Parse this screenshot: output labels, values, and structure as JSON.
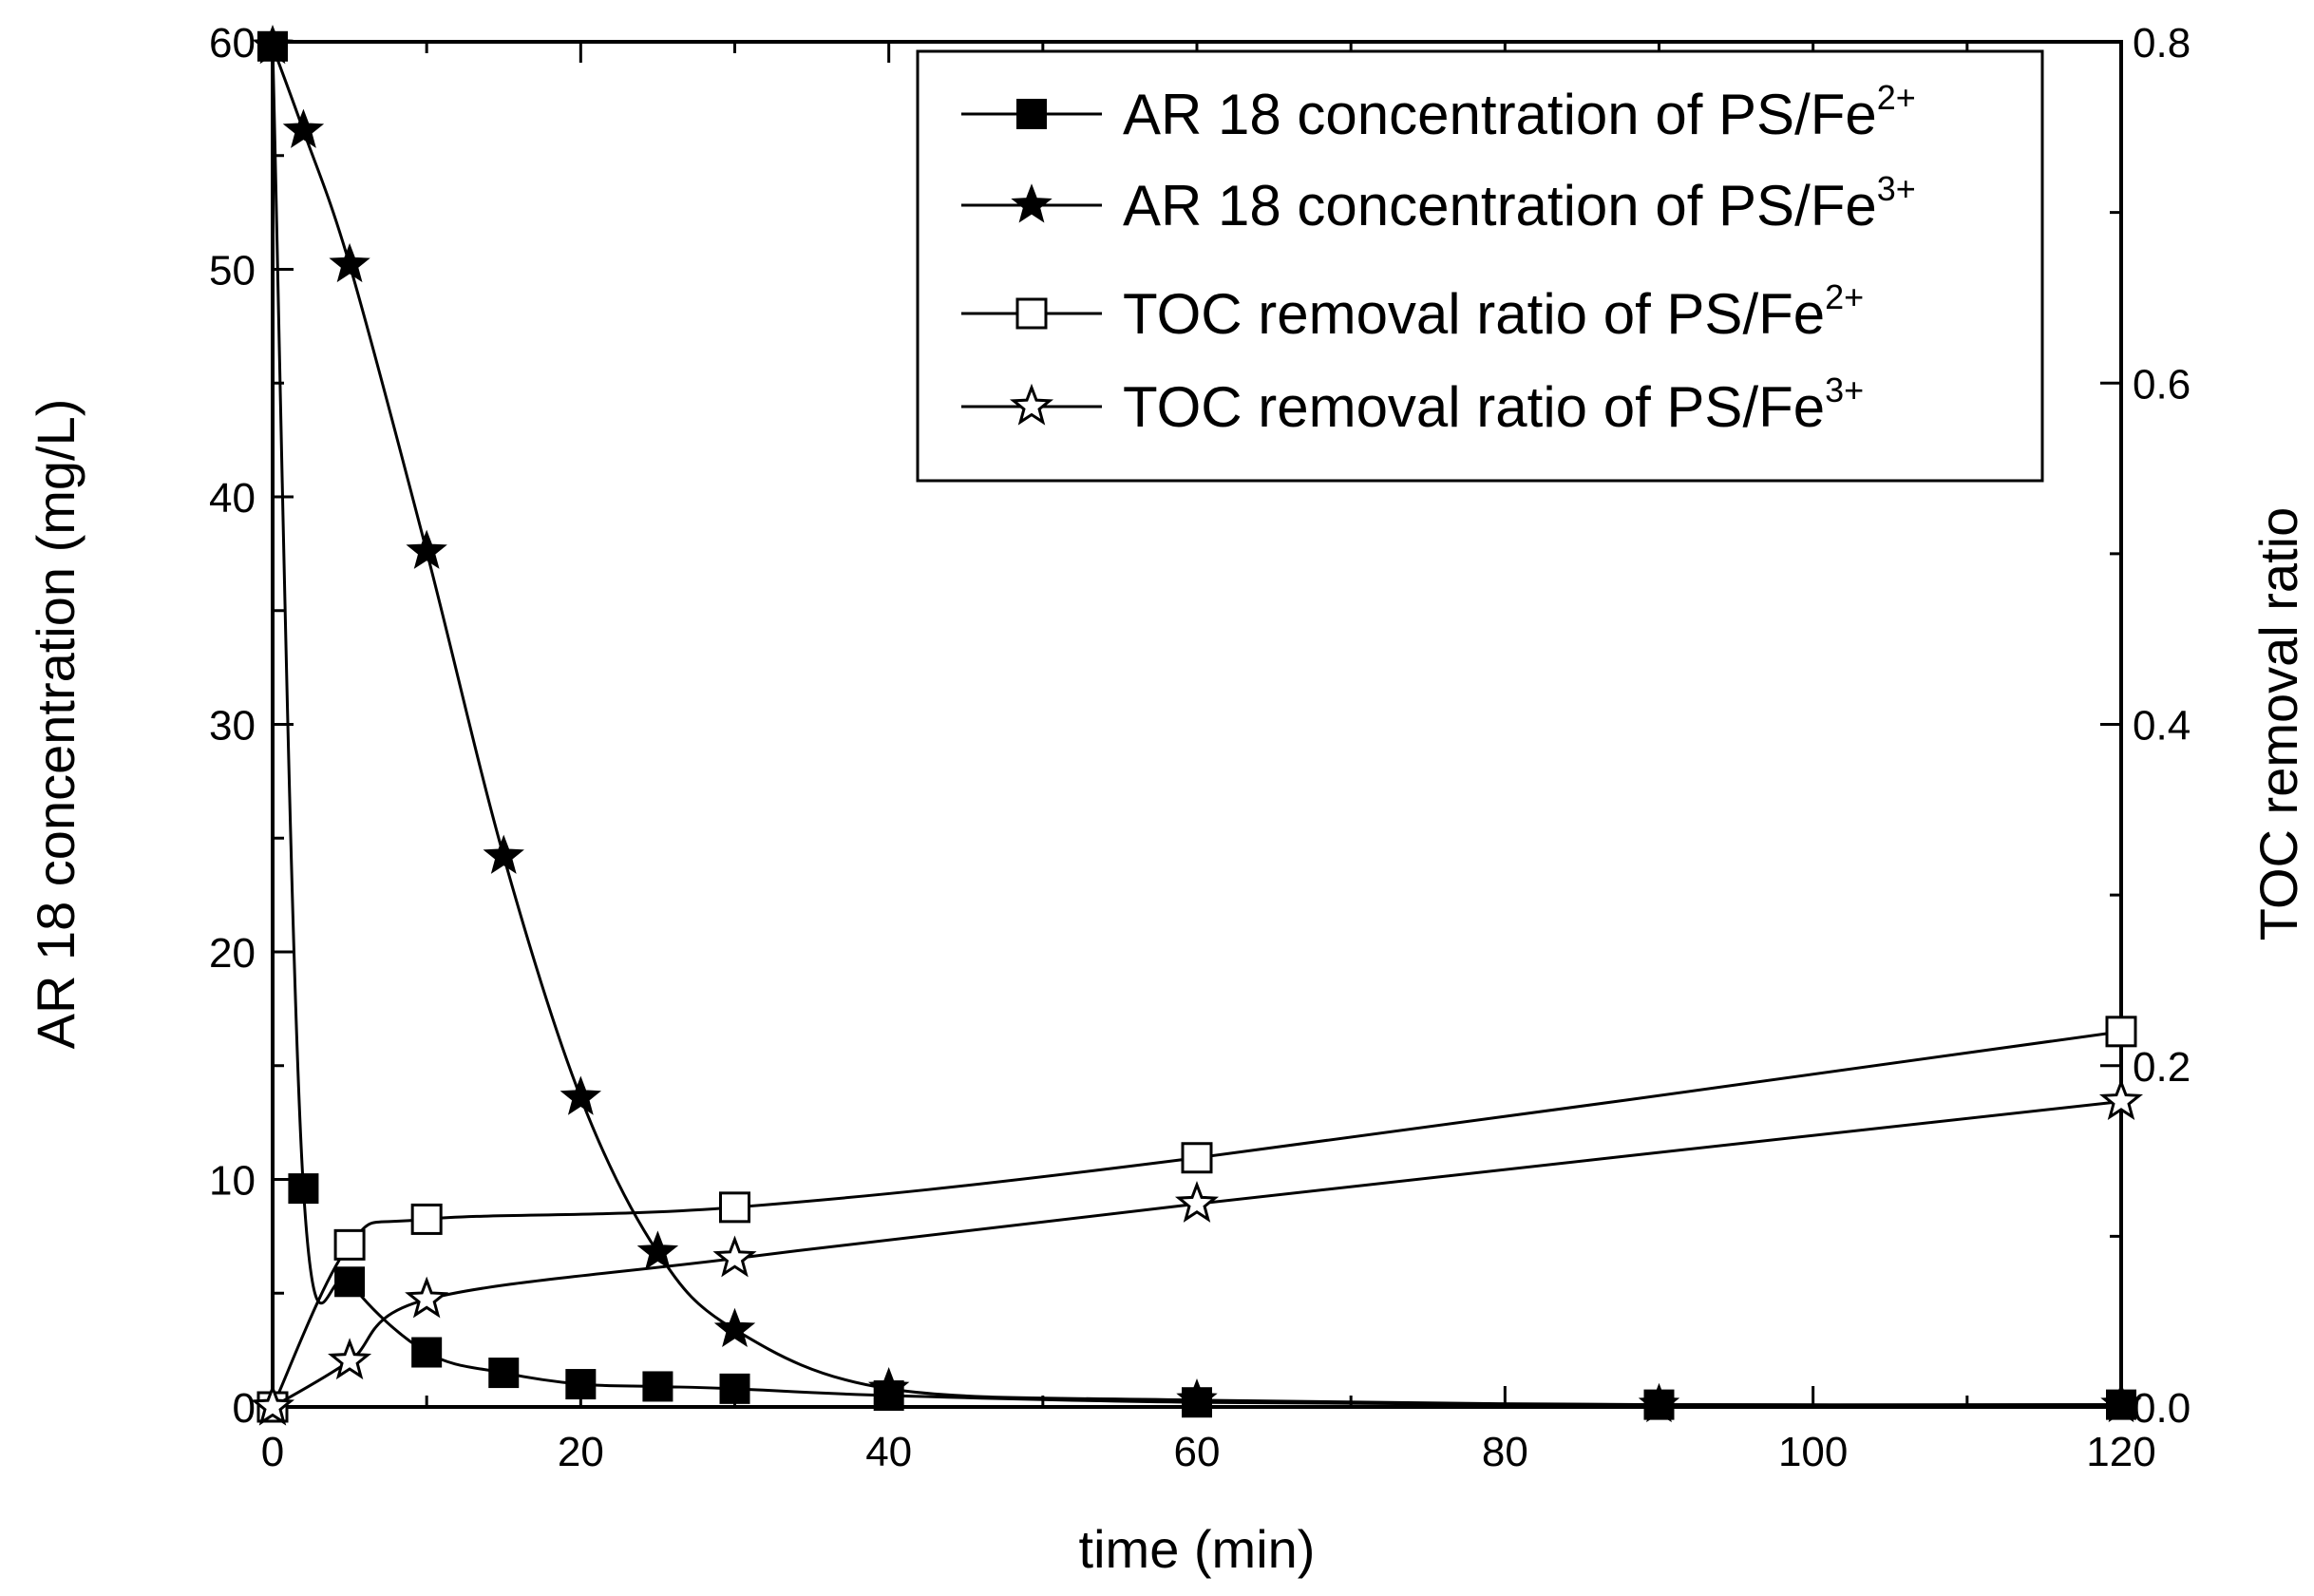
{
  "chart_data": {
    "type": "line",
    "title": "",
    "xlabel": "time (min)",
    "ylabel_left": "AR 18 concentration (mg/L)",
    "ylabel_right": "TOC removal ratio",
    "xlim": [
      0,
      120
    ],
    "ylim_left": [
      0,
      60
    ],
    "ylim_right": [
      0,
      0.8
    ],
    "x_ticks": [
      0,
      20,
      40,
      60,
      80,
      100,
      120
    ],
    "y_left_ticks": [
      0,
      10,
      20,
      30,
      40,
      50,
      60
    ],
    "y_right_ticks": [
      0.0,
      0.2,
      0.4,
      0.6,
      0.8
    ],
    "x_tick_labels": [
      "0",
      "20",
      "40",
      "60",
      "80",
      "100",
      "120"
    ],
    "y_left_tick_labels": [
      "0",
      "10",
      "20",
      "30",
      "40",
      "50",
      "60"
    ],
    "y_right_tick_labels": [
      "0.0",
      "0.2",
      "0.4",
      "0.6",
      "0.8"
    ],
    "legend_position": "top-right",
    "grid": false,
    "series": [
      {
        "name": "AR 18 concentration of PS/Fe2+",
        "label_main": "AR 18 concentration of PS/Fe",
        "label_sup": "2+",
        "axis": "left",
        "marker": "square-filled",
        "x": [
          0,
          2,
          5,
          10,
          15,
          20,
          25,
          30,
          40,
          60,
          90,
          120
        ],
        "y": [
          59.8,
          9.6,
          5.5,
          2.4,
          1.5,
          1.0,
          0.9,
          0.8,
          0.5,
          0.2,
          0.1,
          0.1
        ]
      },
      {
        "name": "AR 18 concentration of PS/Fe3+",
        "label_main": "AR 18 concentration of PS/Fe",
        "label_sup": "3+",
        "axis": "left",
        "marker": "star-filled",
        "x": [
          0,
          2,
          5,
          10,
          15,
          20,
          25,
          30,
          40,
          60,
          90,
          120
        ],
        "y": [
          59.8,
          56.1,
          50.2,
          37.6,
          24.2,
          13.6,
          6.8,
          3.4,
          0.8,
          0.3,
          0.1,
          0.1
        ]
      },
      {
        "name": "TOC removal ratio of PS/Fe2+",
        "label_main": "TOC removal ratio of PS/Fe",
        "label_sup": "2+",
        "axis": "right",
        "marker": "square-open",
        "x": [
          0,
          5,
          10,
          30,
          60,
          120
        ],
        "y": [
          0.0,
          0.095,
          0.11,
          0.117,
          0.146,
          0.22
        ]
      },
      {
        "name": "TOC removal ratio of PS/Fe3+",
        "label_main": "TOC removal ratio of PS/Fe",
        "label_sup": "3+",
        "axis": "right",
        "marker": "star-open",
        "x": [
          0,
          5,
          10,
          30,
          60,
          120
        ],
        "y": [
          0.0,
          0.027,
          0.063,
          0.087,
          0.119,
          0.179
        ]
      }
    ]
  }
}
